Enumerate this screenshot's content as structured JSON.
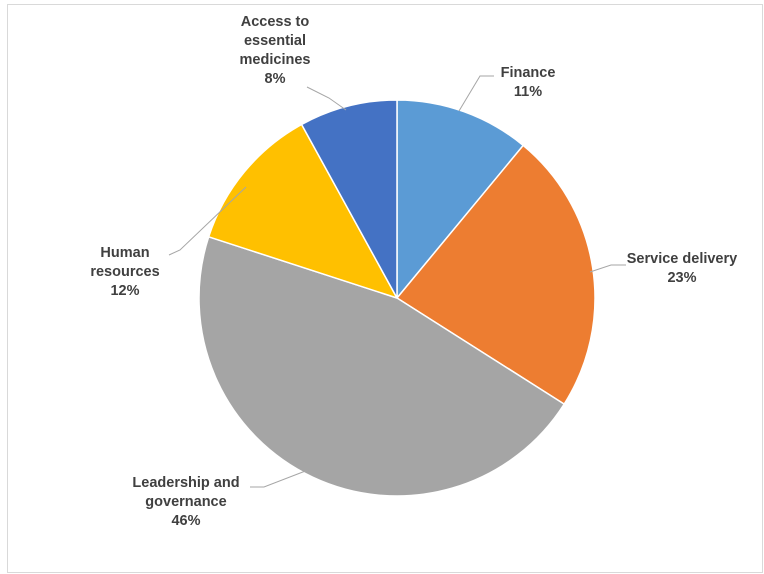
{
  "chart_data": {
    "type": "pie",
    "title": "",
    "slices": [
      {
        "label_lines": [
          "Finance"
        ],
        "pct_label": "11%",
        "value": 11,
        "color": "#5b9bd5"
      },
      {
        "label_lines": [
          "Service delivery"
        ],
        "pct_label": "23%",
        "value": 23,
        "color": "#ed7d31"
      },
      {
        "label_lines": [
          "Leadership and",
          "governance"
        ],
        "pct_label": "46%",
        "value": 46,
        "color": "#a5a5a5"
      },
      {
        "label_lines": [
          "Human",
          "resources"
        ],
        "pct_label": "12%",
        "value": 12,
        "color": "#ffc000"
      },
      {
        "label_lines": [
          "Access to",
          "essential",
          "medicines"
        ],
        "pct_label": "8%",
        "value": 8,
        "color": "#4472c4"
      }
    ],
    "start_angle_deg": 0,
    "direction": "clockwise",
    "legend": "none",
    "leader_line_color": "#a6a6a6"
  }
}
